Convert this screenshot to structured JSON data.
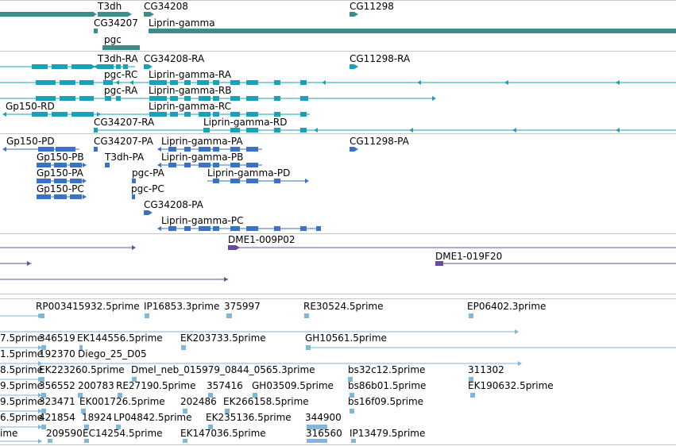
{
  "colors": {
    "gene": "#3c8c8c",
    "mrna": "#1aa0b8",
    "mrna_alt": "#3a72c6",
    "clone": "#6a4aa0",
    "est": "#7fb6dc",
    "separator": "#c8c8c8",
    "text": "#000000"
  },
  "tracks": {
    "genes": {
      "labels": [
        "T3dh",
        "CG34208",
        "CG11298",
        "CG34207",
        "Liprin-gamma",
        "pgc"
      ]
    },
    "transcripts_a": {
      "labels": [
        "T3dh-RA",
        "CG34208-RA",
        "CG11298-RA",
        "pgc-RC",
        "Liprin-gamma-RA",
        "pgc-RA",
        "Liprin-gamma-RB",
        "Gp150-RD",
        "Liprin-gamma-RC",
        "CG34207-RA",
        "Liprin-gamma-RD"
      ]
    },
    "transcripts_b": {
      "labels": [
        "Gp150-PD",
        "CG34207-PA",
        "Liprin-gamma-PA",
        "CG11298-PA",
        "Gp150-PB",
        "T3dh-PA",
        "Liprin-gamma-PB",
        "Gp150-PA",
        "pgc-PA",
        "Liprin-gamma-PD",
        "Gp150-PC",
        "pgc-PC",
        "CG34208-PA",
        "Liprin-gamma-PC"
      ]
    },
    "clones": {
      "labels": [
        "DME1-009P02",
        "DME1-019F20"
      ]
    },
    "ests": {
      "labels": [
        "RP003415932.5prime",
        "IP16853.3prime",
        "375997",
        "RE30524.5prime",
        "EP06402.3prime",
        "7.5prime",
        "346519",
        "EK144556.5prime",
        "EK203733.5prime",
        "GH10561.5prime",
        "1.5prime",
        "192370",
        "Diego_25_D05",
        "8.5prime",
        "EK223260.5prime",
        "Dmel_neb_015979_0844_0565.3prime",
        "bs32c12.5prime",
        "311302",
        "9.5prime",
        "356552",
        "200783",
        "RE27190.5prime",
        "357416",
        "GH03509.5prime",
        "bs86b01.5prime",
        "EK190632.5prime",
        "9.5prime",
        "323471",
        "EK001726.5prime",
        "202486",
        "EK266158.5prime",
        "bs16f09.5prime",
        "6.5prime",
        "421854",
        "18924",
        "LP04842.5prime",
        "EK235136.5prime",
        "344900",
        "ime",
        "209590",
        "EC14254.5prime",
        "EK147036.5prime",
        "316560",
        "IP13479.5prime"
      ]
    }
  }
}
